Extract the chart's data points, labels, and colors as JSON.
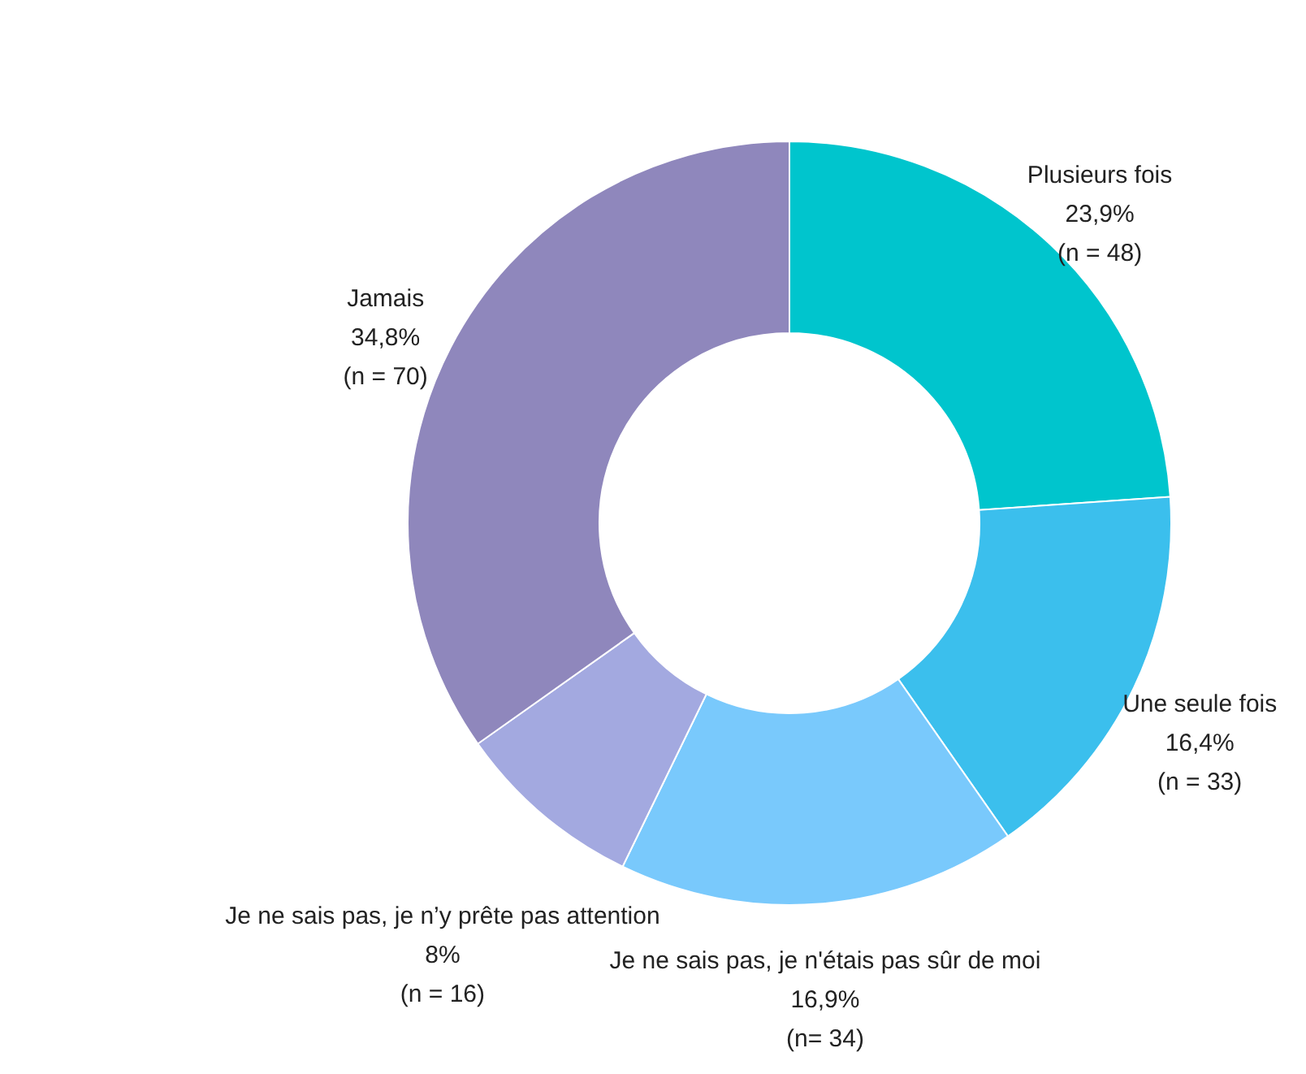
{
  "chart_data": {
    "type": "donut",
    "categories": [
      "Plusieurs fois",
      "Une seule fois",
      "Je ne sais pas, je n'étais pas sûr de moi",
      "Je ne sais pas, je n’y prête pas attention",
      "Jamais"
    ],
    "values": [
      23.9,
      16.4,
      16.9,
      8,
      34.8
    ],
    "colors": [
      "#00c5cd",
      "#3bbfed",
      "#79c9fc",
      "#a3a9e0",
      "#8f87bc"
    ],
    "value_labels": [
      "23,9%",
      "16,4%",
      "16,9%",
      "8%",
      "34,8%"
    ],
    "annotations": [
      "(n = 48)",
      "(n = 33)",
      "(n= 34)",
      "(n = 16)",
      "(n = 70)"
    ]
  }
}
